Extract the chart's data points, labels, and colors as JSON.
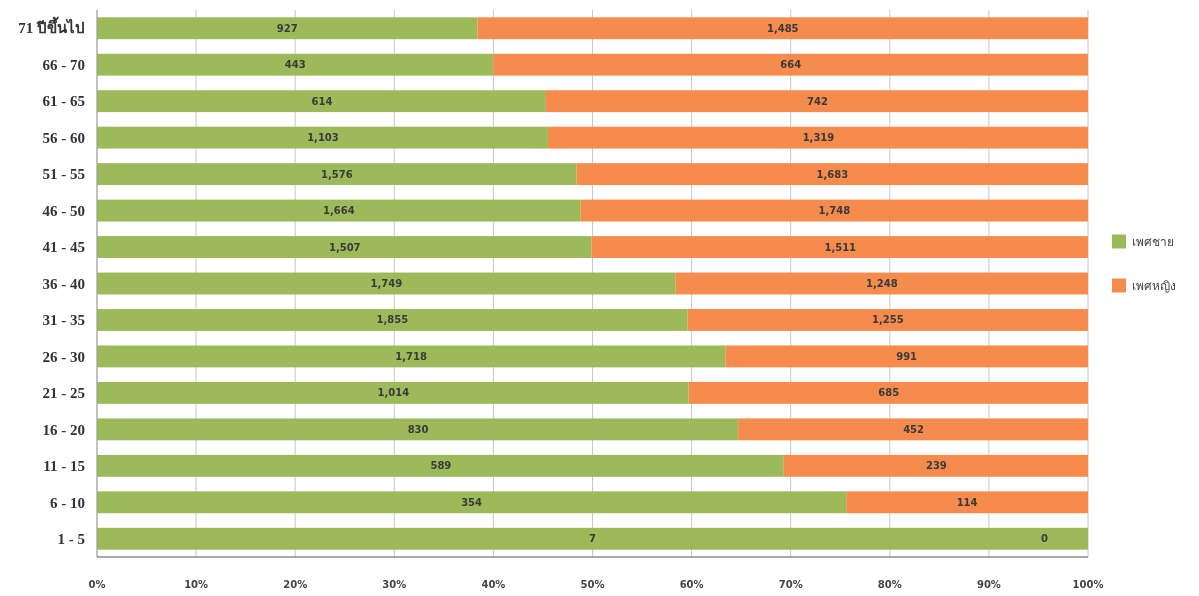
{
  "chart_data": {
    "type": "bar",
    "orientation": "horizontal",
    "stacked": true,
    "categories": [
      "71 ปีขึ้นไป",
      "66 - 70",
      "61 - 65",
      "56 - 60",
      "51 - 55",
      "46 - 50",
      "41 - 45",
      "36 - 40",
      "31 - 35",
      "26 - 30",
      "21 - 25",
      "16 - 20",
      "11 - 15",
      "6 - 10",
      "1 - 5"
    ],
    "series": [
      {
        "name": "เพศชาย",
        "color": "#9cba5a",
        "values": [
          38.4,
          40.0,
          45.3,
          45.5,
          48.4,
          48.8,
          49.9,
          58.4,
          59.6,
          63.4,
          59.7,
          64.7,
          69.3,
          75.6,
          100
        ]
      },
      {
        "name": "เพศหญิง",
        "color": "#f58b4c",
        "values": [
          61.6,
          60.0,
          54.7,
          54.5,
          51.6,
          51.2,
          50.1,
          41.6,
          40.4,
          36.6,
          40.3,
          35.3,
          30.7,
          24.4,
          0
        ]
      }
    ],
    "xlim": [
      0,
      100
    ],
    "xticks": [
      {
        "value": 0,
        "label": "0%"
      },
      {
        "value": 10,
        "label": "10%"
      },
      {
        "value": 20,
        "label": "20%"
      },
      {
        "value": 30,
        "label": "30%"
      },
      {
        "value": 40,
        "label": "40%"
      },
      {
        "value": 50,
        "label": "50%"
      },
      {
        "value": 60,
        "label": "60%"
      },
      {
        "value": 70,
        "label": "70%"
      },
      {
        "value": 80,
        "label": "80%"
      },
      {
        "value": 90,
        "label": "90%"
      },
      {
        "value": 100,
        "label": "100%"
      }
    ],
    "grid": "x",
    "legend": "right",
    "annotations": [
      {
        "text": "927",
        "x": 19.2,
        "y": "71 ปีขึ้นไป"
      },
      {
        "text": "1,485",
        "x": 69.2,
        "y": "71 ปีขึ้นไป"
      },
      {
        "text": "443",
        "x": 20.0,
        "y": "66 - 70"
      },
      {
        "text": "664",
        "x": 70.0,
        "y": "66 - 70"
      },
      {
        "text": "614",
        "x": 22.7,
        "y": "61 - 65"
      },
      {
        "text": "742",
        "x": 72.7,
        "y": "61 - 65"
      },
      {
        "text": "1,103",
        "x": 22.8,
        "y": "56 - 60"
      },
      {
        "text": "1,319",
        "x": 72.8,
        "y": "56 - 60"
      },
      {
        "text": "1,576",
        "x": 24.2,
        "y": "51 - 55"
      },
      {
        "text": "1,683",
        "x": 74.2,
        "y": "51 - 55"
      },
      {
        "text": "1,664",
        "x": 24.4,
        "y": "46 - 50"
      },
      {
        "text": "1,748",
        "x": 74.4,
        "y": "46 - 50"
      },
      {
        "text": "1,507",
        "x": 25.0,
        "y": "41 - 45"
      },
      {
        "text": "1,511",
        "x": 75.0,
        "y": "41 - 45"
      },
      {
        "text": "1,749",
        "x": 29.2,
        "y": "36 - 40"
      },
      {
        "text": "1,248",
        "x": 79.2,
        "y": "36 - 40"
      },
      {
        "text": "1,855",
        "x": 29.8,
        "y": "31 - 35"
      },
      {
        "text": "1,255",
        "x": 79.8,
        "y": "31 - 35"
      },
      {
        "text": "1,718",
        "x": 31.7,
        "y": "26 - 30"
      },
      {
        "text": "991",
        "x": 81.7,
        "y": "26 - 30"
      },
      {
        "text": "1,014",
        "x": 29.9,
        "y": "21 - 25"
      },
      {
        "text": "685",
        "x": 79.9,
        "y": "21 - 25"
      },
      {
        "text": "830",
        "x": 32.4,
        "y": "16 - 20"
      },
      {
        "text": "452",
        "x": 82.4,
        "y": "16 - 20"
      },
      {
        "text": "589",
        "x": 34.7,
        "y": "11 - 15"
      },
      {
        "text": "239",
        "x": 84.7,
        "y": "11 - 15"
      },
      {
        "text": "354",
        "x": 37.8,
        "y": "6 - 10"
      },
      {
        "text": "114",
        "x": 87.8,
        "y": "6 - 10"
      },
      {
        "text": "7",
        "x": 50.0,
        "y": "1 - 5"
      },
      {
        "text": "0",
        "x": 95.6,
        "y": "1 - 5"
      }
    ]
  }
}
